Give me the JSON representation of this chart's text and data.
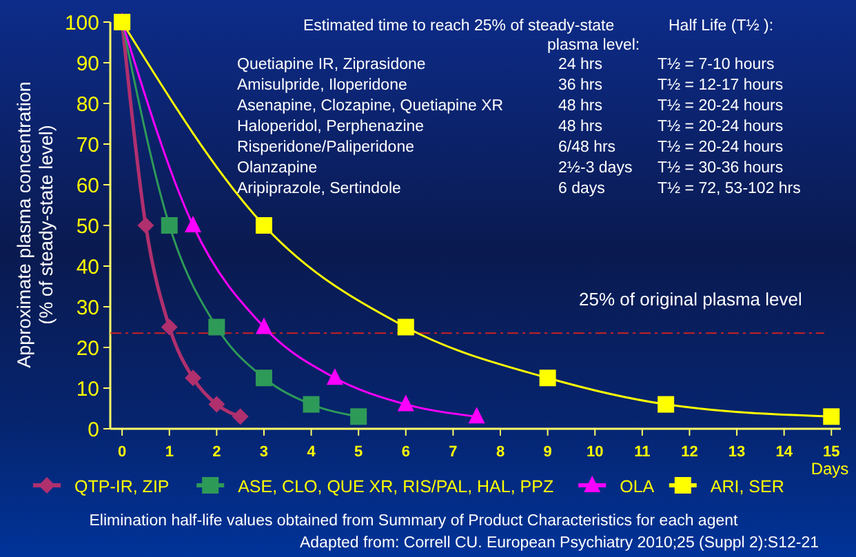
{
  "chart_data": {
    "type": "line",
    "ylabel": "Approximate plasma concentration (% of steady-state level)",
    "xlabel": "Days",
    "xlim": [
      -0.25,
      15.2
    ],
    "ylim": [
      0,
      100
    ],
    "xticks": [
      0,
      1,
      2,
      3,
      4,
      5,
      6,
      7,
      8,
      9,
      10,
      11,
      12,
      13,
      14,
      15
    ],
    "yticks": [
      0,
      10,
      20,
      30,
      40,
      50,
      60,
      70,
      80,
      90,
      100
    ],
    "grid": false,
    "legend": "bottom",
    "line_style": "solid",
    "series": [
      {
        "name": "QTP-IR, ZIP",
        "color": "#b0306e",
        "marker": "diamond",
        "x": [
          0,
          0.5,
          1,
          1.5,
          2,
          2.5
        ],
        "values": [
          100,
          50,
          25,
          12.5,
          6,
          3
        ]
      },
      {
        "name": "ASE, CLO, QUE XR, RIS/PAL, HAL, PPZ",
        "color": "#2e9a58",
        "marker": "square",
        "x": [
          0,
          1,
          2,
          3,
          4,
          5
        ],
        "values": [
          100,
          50,
          25,
          12.5,
          6,
          3
        ]
      },
      {
        "name": "OLA",
        "color": "#ff00ff",
        "marker": "triangle",
        "x": [
          0,
          1.5,
          3,
          4.5,
          6,
          7.5
        ],
        "values": [
          100,
          50,
          25,
          12.5,
          6,
          3
        ]
      },
      {
        "name": "ARI, SER",
        "color": "#ffff00",
        "marker": "square",
        "x": [
          0,
          3,
          6,
          9,
          11.5,
          15
        ],
        "values": [
          100,
          50,
          25,
          12.5,
          6,
          3
        ]
      }
    ],
    "ref_lines": [
      {
        "axis": "y",
        "value": 23.5,
        "label": "25% of original plasma level",
        "color": "#cc2222",
        "line_style": "dashed"
      }
    ],
    "annotations": [
      "Estimated time to reach 25% of steady-state",
      "plasma level:",
      "Half Life (T½ ):",
      "Quetiapine IR, Ziprasidone",
      "24 hrs",
      "T½ = 7-10 hours",
      "Amisulpride, Iloperidone",
      "36 hrs",
      "T½ = 12-17 hours",
      "Asenapine, Clozapine, Quetiapine XR",
      "48 hrs",
      "T½ = 20-24 hours",
      "Haloperidol, Perphenazine",
      "48 hrs",
      "T½ = 20-24 hours",
      "Risperidone/Paliperidone",
      "6/48 hrs",
      "T½ = 20-24 hours",
      "Olanzapine",
      "2½-3 days",
      "T½ = 30-36 hours",
      "Aripiprazole, Sertindole",
      "6 days",
      "T½ = 72, 53-102 hrs",
      "Elimination half-life values obtained from Summary of Product Characteristics for each agent",
      "Adapted from: Correll CU. European Psychiatry 2010;25 (Suppl 2):S12-21"
    ]
  }
}
